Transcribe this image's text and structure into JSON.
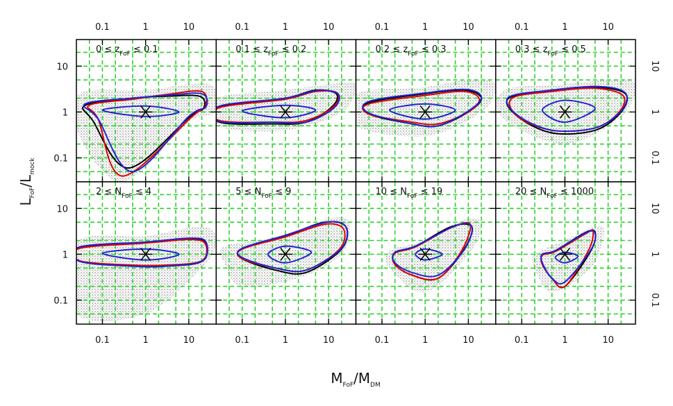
{
  "chart_data": {
    "type": "contour-grid",
    "xlabel": [
      "M",
      "FoF",
      "/M",
      "DM"
    ],
    "ylabel": [
      "L",
      "FoF",
      "/L",
      "mock"
    ],
    "xlog": true,
    "ylog": true,
    "xlim": [
      0.025,
      43
    ],
    "ylim": [
      0.03,
      38
    ],
    "xticks": [
      0.1,
      1,
      10
    ],
    "yticks": [
      0.1,
      1,
      10
    ],
    "grid": true,
    "grid_color": "#2fd02f",
    "xgrid": [
      0.05,
      0.1,
      0.2,
      0.5,
      1,
      2,
      5,
      10,
      20
    ],
    "ygrid": [
      0.05,
      0.1,
      0.2,
      0.5,
      1,
      2,
      5,
      10,
      20
    ],
    "cloud_color": "#b4b4b4",
    "panels": [
      {
        "label": [
          "0 ≤ z",
          "FoF",
          " ≤ 0.1"
        ],
        "marker": {
          "x": 1,
          "y": 1
        },
        "cloud": {
          "x": [
            0.03,
            1,
            30,
            40,
            10,
            0.3,
            0.03
          ],
          "y": [
            2.5,
            3,
            4,
            1,
            0.6,
            0.03,
            0.3
          ]
        },
        "contours": [
          {
            "color": "#000000",
            "x": [
              0.04,
              0.5,
              3,
              18,
              22,
              10,
              0.4,
              0.06
            ],
            "y": [
              1.4,
              2.0,
              2.2,
              2.2,
              1.2,
              0.75,
              0.06,
              0.65
            ]
          },
          {
            "color": "#e00000",
            "x": [
              0.05,
              0.5,
              3,
              20,
              24,
              12,
              0.3,
              0.08
            ],
            "y": [
              1.4,
              1.9,
              2.4,
              2.8,
              1.3,
              0.8,
              0.04,
              0.7
            ]
          },
          {
            "color": "#2323d6",
            "x": [
              0.04,
              0.5,
              3,
              20,
              25,
              10,
              0.5,
              0.08
            ],
            "y": [
              1.5,
              2.0,
              2.3,
              2.5,
              1.3,
              0.8,
              0.05,
              0.7
            ]
          },
          {
            "color": "#2323d6",
            "x": [
              0.1,
              1,
              6,
              1
            ],
            "y": [
              1.1,
              1.35,
              1.0,
              0.8
            ]
          }
        ]
      },
      {
        "label": [
          "0.1 ≤ z",
          "FoF",
          " ≤ 0.2"
        ],
        "marker": {
          "x": 1,
          "y": 1
        },
        "cloud": {
          "x": [
            0.025,
            1,
            10,
            43,
            20,
            1,
            0.025
          ],
          "y": [
            2,
            3,
            4,
            4,
            1,
            0.4,
            0.5
          ]
        },
        "contours": [
          {
            "color": "#000000",
            "x": [
              0.03,
              1,
              5,
              15,
              12,
              3,
              0.5,
              0.03
            ],
            "y": [
              1.3,
              2,
              3,
              2.5,
              1.3,
              0.6,
              0.55,
              0.6
            ]
          },
          {
            "color": "#e00000",
            "x": [
              0.03,
              1,
              5,
              16,
              13,
              3,
              0.5,
              0.03
            ],
            "y": [
              1.25,
              1.9,
              2.8,
              2.6,
              1.3,
              0.65,
              0.6,
              0.65
            ]
          },
          {
            "color": "#2323d6",
            "x": [
              0.03,
              1,
              6,
              17,
              13,
              3,
              0.5,
              0.03
            ],
            "y": [
              1.35,
              2,
              3,
              2.4,
              1.2,
              0.6,
              0.6,
              0.62
            ]
          },
          {
            "color": "#2323d6",
            "x": [
              0.1,
              1,
              5,
              1
            ],
            "y": [
              1.05,
              1.4,
              1.1,
              0.75
            ]
          }
        ]
      },
      {
        "label": [
          "0.2 ≤ z",
          "FoF",
          " ≤ 0.3"
        ],
        "marker": {
          "x": 1,
          "y": 1
        },
        "cloud": {
          "x": [
            0.025,
            1,
            10,
            43,
            20,
            1,
            0.025
          ],
          "y": [
            2.5,
            3.5,
            5,
            4,
            1,
            0.3,
            0.5
          ]
        },
        "contours": [
          {
            "color": "#000000",
            "x": [
              0.05,
              1,
              8,
              20,
              10,
              2,
              0.5,
              0.05
            ],
            "y": [
              1.6,
              2.5,
              3,
              2,
              1,
              0.5,
              0.55,
              0.9
            ]
          },
          {
            "color": "#e00000",
            "x": [
              0.05,
              1,
              8,
              18,
              10,
              2,
              0.5,
              0.05
            ],
            "y": [
              1.5,
              2.3,
              2.8,
              1.9,
              1,
              0.55,
              0.6,
              0.9
            ]
          },
          {
            "color": "#2323d6",
            "x": [
              0.05,
              1,
              9,
              20,
              10,
              2,
              0.5,
              0.05
            ],
            "y": [
              1.7,
              2.6,
              3.1,
              2.1,
              1.05,
              0.5,
              0.55,
              0.95
            ]
          },
          {
            "color": "#2323d6",
            "x": [
              0.15,
              1,
              5,
              1
            ],
            "y": [
              1.1,
              1.5,
              1.1,
              0.7
            ]
          }
        ]
      },
      {
        "label": [
          "0.3 ≤ z",
          "FoF",
          " ≤ 0.5"
        ],
        "marker": {
          "x": 1,
          "y": 1
        },
        "cloud": {
          "x": [
            0.04,
            1,
            10,
            43,
            20,
            1,
            0.04
          ],
          "y": [
            3,
            4,
            5,
            4,
            0.8,
            0.2,
            0.7
          ]
        },
        "contours": [
          {
            "color": "#000000",
            "x": [
              0.05,
              0.5,
              5,
              25,
              20,
              5,
              0.5,
              0.08
            ],
            "y": [
              2,
              3,
              3.5,
              2.5,
              1,
              0.4,
              0.35,
              0.8
            ]
          },
          {
            "color": "#e00000",
            "x": [
              0.06,
              0.5,
              5,
              22,
              18,
              5,
              0.5,
              0.08
            ],
            "y": [
              2,
              2.8,
              3.3,
              2.3,
              1,
              0.45,
              0.4,
              0.8
            ]
          },
          {
            "color": "#2323d6",
            "x": [
              0.05,
              0.5,
              6,
              25,
              20,
              5,
              0.5,
              0.08
            ],
            "y": [
              2.1,
              3,
              3.6,
              2.6,
              1.05,
              0.45,
              0.4,
              0.85
            ]
          },
          {
            "color": "#2323d6",
            "x": [
              0.3,
              1,
              5,
              1
            ],
            "y": [
              1.1,
              1.8,
              1.2,
              0.6
            ]
          }
        ]
      },
      {
        "label": [
          "2 ≤ N",
          "FoF",
          " ≤ 4"
        ],
        "marker": {
          "x": 1,
          "y": 1
        },
        "cloud": {
          "x": [
            0.025,
            1,
            20,
            43,
            20,
            1,
            0.025
          ],
          "y": [
            1.8,
            2.5,
            4,
            2,
            0.5,
            0.05,
            0.05
          ]
        },
        "contours": [
          {
            "color": "#000000",
            "x": [
              0.03,
              1,
              10,
              25,
              20,
              3,
              0.5,
              0.03
            ],
            "y": [
              1.4,
              1.8,
              2.2,
              1.8,
              0.7,
              0.55,
              0.55,
              0.7
            ]
          },
          {
            "color": "#e00000",
            "x": [
              0.03,
              1,
              10,
              24,
              20,
              3,
              0.5,
              0.03
            ],
            "y": [
              1.35,
              1.75,
              2.1,
              1.7,
              0.72,
              0.58,
              0.58,
              0.72
            ]
          },
          {
            "color": "#2323d6",
            "x": [
              0.03,
              1,
              11,
              25,
              21,
              3,
              0.5,
              0.03
            ],
            "y": [
              1.45,
              1.85,
              2.25,
              1.85,
              0.72,
              0.55,
              0.55,
              0.7
            ]
          },
          {
            "color": "#2323d6",
            "x": [
              0.1,
              1,
              6,
              1
            ],
            "y": [
              1.05,
              1.3,
              1,
              0.75
            ]
          }
        ]
      },
      {
        "label": [
          "5 ≤ N",
          "FoF",
          " ≤ 9"
        ],
        "marker": {
          "x": 1,
          "y": 1
        },
        "cloud": {
          "x": [
            0.04,
            1,
            10,
            30,
            20,
            2,
            0.1,
            0.04
          ],
          "y": [
            1.5,
            2.5,
            6,
            5,
            1,
            0.3,
            0.2,
            0.6
          ]
        },
        "contours": [
          {
            "color": "#000000",
            "x": [
              0.1,
              1,
              8,
              25,
              20,
              3,
              0.6,
              0.1
            ],
            "y": [
              1.3,
              2.5,
              5,
              4,
              1.3,
              0.4,
              0.45,
              0.8
            ]
          },
          {
            "color": "#e00000",
            "x": [
              0.1,
              1,
              8,
              22,
              18,
              3,
              0.6,
              0.1
            ],
            "y": [
              1.3,
              2.4,
              4.5,
              3.6,
              1.3,
              0.45,
              0.5,
              0.8
            ]
          },
          {
            "color": "#2323d6",
            "x": [
              0.1,
              1,
              9,
              25,
              20,
              3,
              0.6,
              0.1
            ],
            "y": [
              1.35,
              2.6,
              5,
              4,
              1.35,
              0.45,
              0.5,
              0.85
            ]
          },
          {
            "color": "#2323d6",
            "x": [
              0.4,
              1,
              4,
              1
            ],
            "y": [
              1,
              1.5,
              1.1,
              0.65
            ]
          }
        ]
      },
      {
        "label": [
          "10 ≤ N",
          "FoF",
          " ≤ 19"
        ],
        "marker": {
          "x": 1,
          "y": 1
        },
        "cloud": {
          "x": [
            0.15,
            1,
            10,
            20,
            10,
            1,
            0.15
          ],
          "y": [
            1.2,
            2,
            6,
            4,
            1,
            0.15,
            0.5
          ]
        },
        "contours": [
          {
            "color": "#000000",
            "x": [
              0.2,
              0.6,
              4,
              12,
              8,
              2,
              0.5,
              0.2
            ],
            "y": [
              1.1,
              1.5,
              4,
              4,
              1.3,
              0.3,
              0.35,
              0.6
            ]
          },
          {
            "color": "#e00000",
            "x": [
              0.2,
              0.6,
              4,
              11,
              7,
              2,
              0.5,
              0.2
            ],
            "y": [
              1.05,
              1.45,
              3.8,
              4.5,
              1.2,
              0.3,
              0.35,
              0.6
            ]
          },
          {
            "color": "#2323d6",
            "x": [
              0.2,
              0.6,
              5,
              12,
              8,
              2,
              0.5,
              0.2
            ],
            "y": [
              1.1,
              1.5,
              4.2,
              4,
              1.25,
              0.35,
              0.4,
              0.65
            ]
          },
          {
            "color": "#2323d6",
            "x": [
              0.6,
              1,
              2.5,
              1
            ],
            "y": [
              1,
              1.3,
              1,
              0.75
            ]
          }
        ]
      },
      {
        "label": [
          "20 ≤ N",
          "FoF",
          " ≤ 1000"
        ],
        "marker": {
          "x": 1,
          "y": 1
        },
        "cloud": {
          "x": [
            0.2,
            1,
            5,
            8,
            4,
            0.5,
            0.2
          ],
          "y": [
            1,
            2,
            4,
            3,
            0.5,
            0.15,
            0.5
          ]
        },
        "contours": [
          {
            "color": "#000000",
            "x": [
              0.3,
              0.6,
              3,
              5,
              4,
              1,
              0.5,
              0.3
            ],
            "y": [
              1,
              1.2,
              3,
              3,
              1.2,
              0.2,
              0.3,
              0.6
            ]
          },
          {
            "color": "#e00000",
            "x": [
              0.3,
              0.6,
              3,
              4.5,
              3.5,
              1,
              0.5,
              0.3
            ],
            "y": [
              0.95,
              1.15,
              2.8,
              3.2,
              1.2,
              0.2,
              0.3,
              0.6
            ]
          },
          {
            "color": "#2323d6",
            "x": [
              0.3,
              0.6,
              3.2,
              5,
              4,
              1,
              0.5,
              0.3
            ],
            "y": [
              1,
              1.2,
              3,
              2.8,
              1.25,
              0.25,
              0.3,
              0.65
            ]
          },
          {
            "color": "#2323d6",
            "x": [
              0.6,
              1,
              2,
              1
            ],
            "y": [
              0.85,
              1.1,
              0.9,
              0.65
            ]
          }
        ]
      }
    ]
  }
}
